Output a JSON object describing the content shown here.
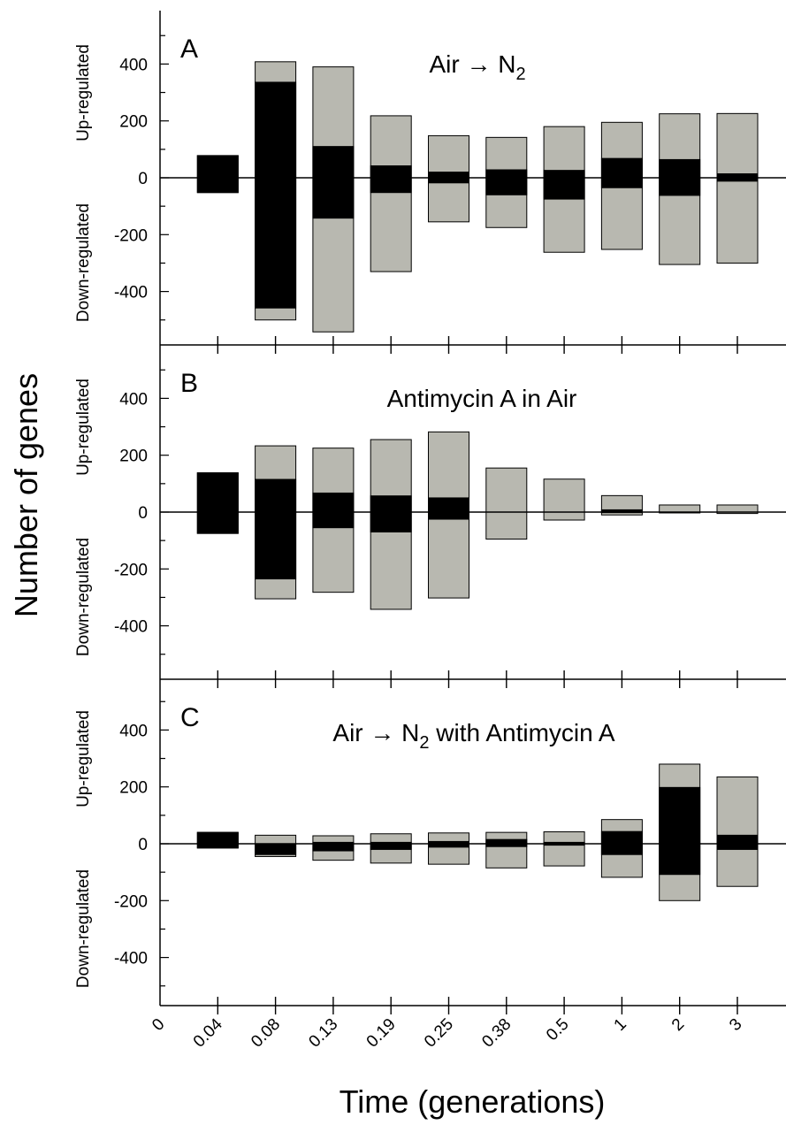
{
  "chart_data": {
    "type": "bar",
    "ylabel": "Number of genes",
    "xlabel": "Time (generations)",
    "x_tick_labels": [
      "0",
      "0.04",
      "0.08",
      "0.13",
      "0.19",
      "0.25",
      "0.38",
      "0.5",
      "1",
      "2",
      "3"
    ],
    "y_tick_labels": [
      "400",
      "200",
      "0",
      "-200",
      "-400"
    ],
    "y_tick_values": [
      400,
      200,
      0,
      -200,
      -400
    ],
    "up_label": "Up-regulated",
    "down_label": "Down-regulated",
    "ylim": [
      -590,
      590
    ],
    "colors": {
      "total": "#b8b8b0",
      "core": "#000000"
    },
    "panels": [
      {
        "letter": "A",
        "title": "Air → N",
        "title_sub": "2",
        "title_rest": "",
        "series": [
          {
            "x": "0.04",
            "up_total": 78,
            "up_core": 78,
            "down_total": -52,
            "down_core": -52
          },
          {
            "x": "0.08",
            "up_total": 408,
            "up_core": 336,
            "down_total": -500,
            "down_core": -458
          },
          {
            "x": "0.13",
            "up_total": 390,
            "up_core": 110,
            "down_total": -542,
            "down_core": -142
          },
          {
            "x": "0.19",
            "up_total": 218,
            "up_core": 42,
            "down_total": -330,
            "down_core": -52
          },
          {
            "x": "0.25",
            "up_total": 148,
            "up_core": 20,
            "down_total": -155,
            "down_core": -18
          },
          {
            "x": "0.38",
            "up_total": 142,
            "up_core": 28,
            "down_total": -175,
            "down_core": -60
          },
          {
            "x": "0.5",
            "up_total": 180,
            "up_core": 26,
            "down_total": -262,
            "down_core": -75
          },
          {
            "x": "1",
            "up_total": 195,
            "up_core": 68,
            "down_total": -252,
            "down_core": -35
          },
          {
            "x": "2",
            "up_total": 225,
            "up_core": 64,
            "down_total": -305,
            "down_core": -62
          },
          {
            "x": "3",
            "up_total": 226,
            "up_core": 14,
            "down_total": -300,
            "down_core": -12
          }
        ]
      },
      {
        "letter": "B",
        "title": "Antimycin A in Air",
        "title_sub": "",
        "title_rest": "",
        "series": [
          {
            "x": "0.04",
            "up_total": 138,
            "up_core": 138,
            "down_total": -75,
            "down_core": -75
          },
          {
            "x": "0.08",
            "up_total": 233,
            "up_core": 115,
            "down_total": -305,
            "down_core": -235
          },
          {
            "x": "0.13",
            "up_total": 225,
            "up_core": 67,
            "down_total": -282,
            "down_core": -55
          },
          {
            "x": "0.19",
            "up_total": 255,
            "up_core": 57,
            "down_total": -342,
            "down_core": -70
          },
          {
            "x": "0.25",
            "up_total": 282,
            "up_core": 50,
            "down_total": -302,
            "down_core": -25
          },
          {
            "x": "0.38",
            "up_total": 155,
            "up_core": 0,
            "down_total": -95,
            "down_core": 0
          },
          {
            "x": "0.5",
            "up_total": 116,
            "up_core": 0,
            "down_total": -28,
            "down_core": 0
          },
          {
            "x": "1",
            "up_total": 58,
            "up_core": 8,
            "down_total": -10,
            "down_core": -2
          },
          {
            "x": "2",
            "up_total": 25,
            "up_core": 0,
            "down_total": -3,
            "down_core": 0
          },
          {
            "x": "3",
            "up_total": 25,
            "up_core": 0,
            "down_total": -5,
            "down_core": 0
          }
        ]
      },
      {
        "letter": "C",
        "title": "Air → N",
        "title_sub": "2",
        "title_rest": " with Antimycin A",
        "series": [
          {
            "x": "0.04",
            "up_total": 40,
            "up_core": 40,
            "down_total": -15,
            "down_core": -15
          },
          {
            "x": "0.08",
            "up_total": 30,
            "up_core": 0,
            "down_total": -45,
            "down_core": -38
          },
          {
            "x": "0.13",
            "up_total": 28,
            "up_core": 5,
            "down_total": -58,
            "down_core": -25
          },
          {
            "x": "0.19",
            "up_total": 35,
            "up_core": 5,
            "down_total": -68,
            "down_core": -20
          },
          {
            "x": "0.25",
            "up_total": 38,
            "up_core": 8,
            "down_total": -72,
            "down_core": -12
          },
          {
            "x": "0.38",
            "up_total": 40,
            "up_core": 15,
            "down_total": -85,
            "down_core": -10
          },
          {
            "x": "0.5",
            "up_total": 42,
            "up_core": 5,
            "down_total": -78,
            "down_core": -5
          },
          {
            "x": "1",
            "up_total": 85,
            "up_core": 43,
            "down_total": -118,
            "down_core": -38
          },
          {
            "x": "2",
            "up_total": 280,
            "up_core": 198,
            "down_total": -200,
            "down_core": -108
          },
          {
            "x": "3",
            "up_total": 235,
            "up_core": 30,
            "down_total": -150,
            "down_core": -20
          }
        ]
      }
    ]
  }
}
